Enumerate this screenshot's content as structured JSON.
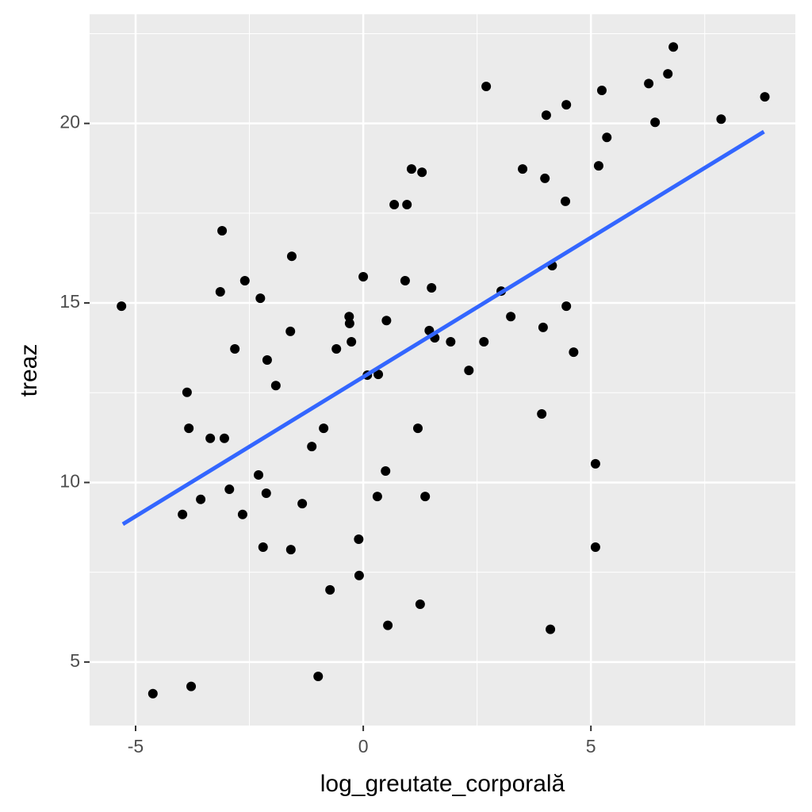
{
  "chart_data": {
    "type": "scatter",
    "x_label": "log_greutate_corporală",
    "y_label": "treaz",
    "xlim": [
      -6.01,
      9.49
    ],
    "ylim": [
      3.23,
      23.04
    ],
    "xticks": [
      -5,
      0,
      5
    ],
    "yticks": [
      5,
      10,
      15,
      20
    ],
    "minor_xticks": [
      -2.5,
      2.5,
      7.5
    ],
    "minor_yticks": [
      7.5,
      12.5,
      17.5,
      22.5
    ],
    "grid": true,
    "background": "#ebebeb",
    "grid_color": "#ffffff",
    "series": [
      {
        "color": "#000000",
        "x": [
          -5.31,
          -4.62,
          -3.78,
          -3.97,
          -3.87,
          -3.83,
          -3.57,
          -3.36,
          -3.05,
          -3.1,
          -3.14,
          -2.94,
          -2.82,
          -2.65,
          -2.6,
          -2.3,
          -2.26,
          -2.2,
          -2.13,
          -2.11,
          -1.92,
          -1.6,
          -1.57,
          -1.59,
          -1.34,
          -1.13,
          -0.99,
          -0.87,
          -0.73,
          -0.59,
          -0.31,
          -0.3,
          -0.26,
          -0.1,
          -0.09,
          0.0,
          0.09,
          0.33,
          0.31,
          0.51,
          0.49,
          0.54,
          0.68,
          0.96,
          0.92,
          1.06,
          1.29,
          1.2,
          1.25,
          1.36,
          1.45,
          1.5,
          1.57,
          1.92,
          2.32,
          2.65,
          2.7,
          3.03,
          3.24,
          3.5,
          3.92,
          3.95,
          3.99,
          4.02,
          4.11,
          4.15,
          4.46,
          4.44,
          4.46,
          4.62,
          5.1,
          5.1,
          5.17,
          5.24,
          5.35,
          6.27,
          6.41,
          6.69,
          6.81,
          7.86,
          8.82
        ],
        "values": [
          14.91,
          4.12,
          4.32,
          9.11,
          12.51,
          11.51,
          9.53,
          11.23,
          11.23,
          17.01,
          15.31,
          9.81,
          13.72,
          9.11,
          15.62,
          10.21,
          15.13,
          8.2,
          9.7,
          13.41,
          12.7,
          14.21,
          16.3,
          8.13,
          9.41,
          11.0,
          4.6,
          11.51,
          7.01,
          13.72,
          14.62,
          14.43,
          13.92,
          8.42,
          7.41,
          15.73,
          12.99,
          13.01,
          9.61,
          14.51,
          10.32,
          6.02,
          17.74,
          17.74,
          15.62,
          18.73,
          18.64,
          11.51,
          6.61,
          9.61,
          14.23,
          15.42,
          14.03,
          13.92,
          13.12,
          13.92,
          21.03,
          15.33,
          14.62,
          18.73,
          11.91,
          14.32,
          18.47,
          20.23,
          5.91,
          16.04,
          20.52,
          17.83,
          14.91,
          13.63,
          10.52,
          8.2,
          18.82,
          20.92,
          19.61,
          21.11,
          20.03,
          21.38,
          22.13,
          20.12,
          20.74
        ]
      }
    ],
    "fit": {
      "color": "#3366ff",
      "x": [
        -5.28,
        8.8
      ],
      "values": [
        8.84,
        19.77
      ]
    }
  }
}
